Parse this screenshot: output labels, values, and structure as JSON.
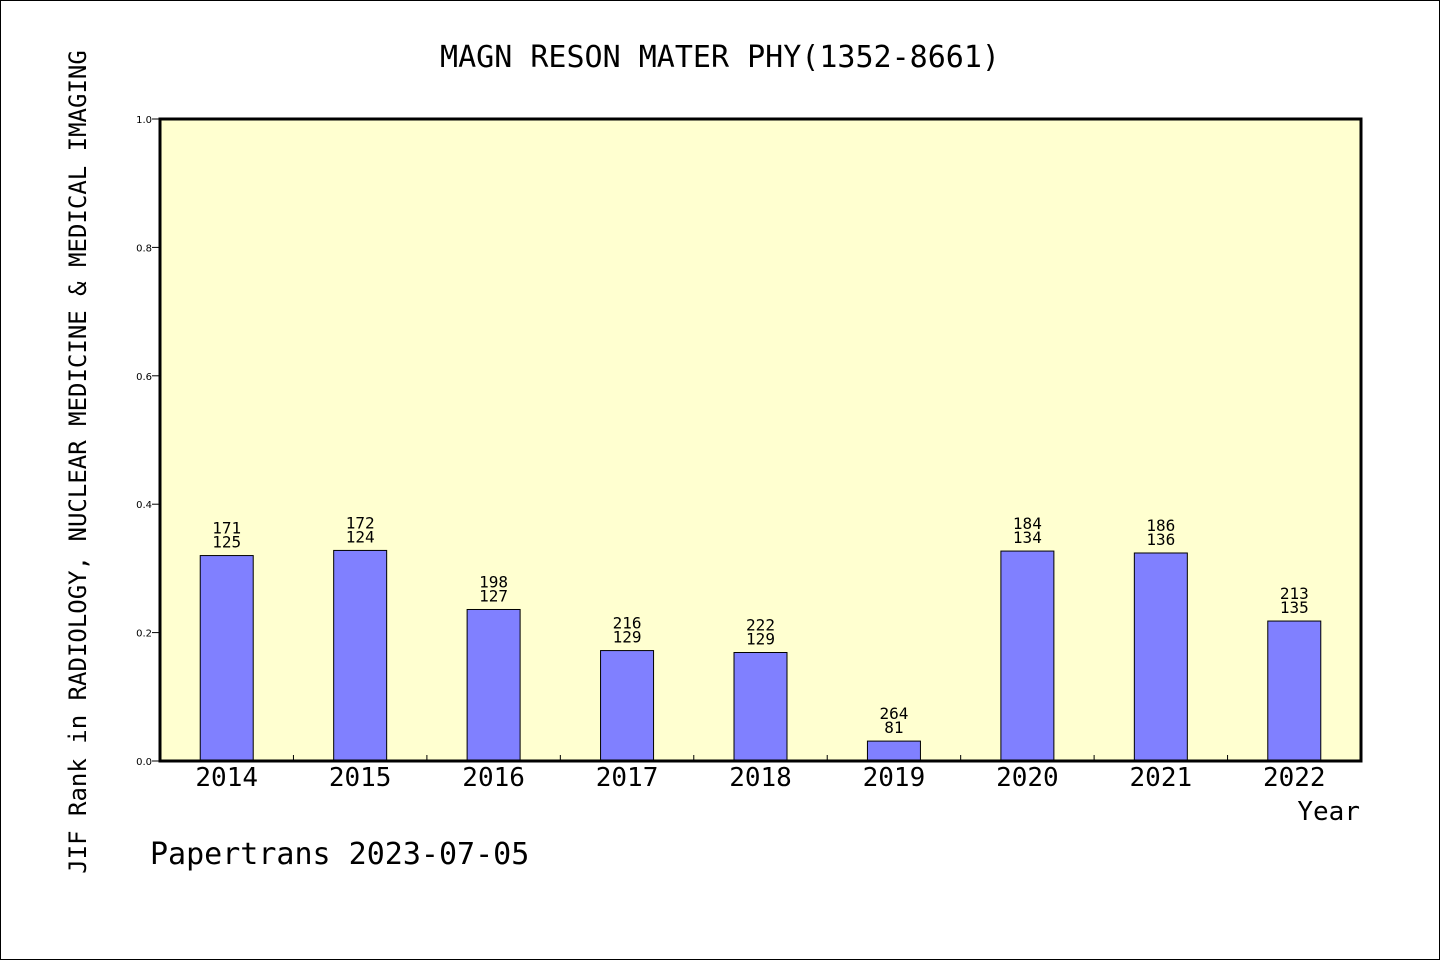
{
  "chart_data": {
    "type": "bar",
    "title": "MAGN RESON MATER PHY(1352-8661)",
    "xlabel": "Year",
    "ylabel": "JIF Rank in RADIOLOGY, NUCLEAR MEDICINE & MEDICAL IMAGING",
    "ylim": [
      0,
      1.0
    ],
    "yticks": [
      "0.0",
      "0.2",
      "0.4",
      "0.6",
      "0.8",
      "1.0"
    ],
    "categories": [
      "2014",
      "2015",
      "2016",
      "2017",
      "2018",
      "2019",
      "2020",
      "2021",
      "2022"
    ],
    "values": [
      0.32,
      0.328,
      0.236,
      0.172,
      0.169,
      0.031,
      0.327,
      0.324,
      0.218
    ],
    "totals": [
      "171",
      "172",
      "198",
      "216",
      "222",
      "264",
      "184",
      "186",
      "213"
    ],
    "ranks": [
      "125",
      "124",
      "127",
      "129",
      "129",
      "81",
      "134",
      "136",
      "135"
    ],
    "bar_color": "#8080ff",
    "plot_background": "#ffffd0",
    "grid": false
  },
  "footer": "Papertrans 2023-07-05"
}
